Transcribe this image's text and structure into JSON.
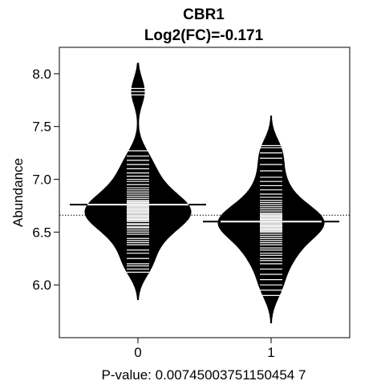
{
  "chart_data": {
    "type": "beanplot",
    "title": "CBR1",
    "subtitle": "Log2(FC)=-0.171",
    "xlabel": "P-value: 0.00745003751150454 7",
    "ylabel": "Abundance",
    "categories": [
      "0",
      "1"
    ],
    "ylim": [
      5.5,
      8.25
    ],
    "y_ticks": [
      6.0,
      6.5,
      7.0,
      7.5,
      8.0
    ],
    "y_tick_labels": [
      "6.0",
      "6.5",
      "7.0",
      "7.5",
      "8.0"
    ],
    "overall_mean": 6.66,
    "groups": [
      {
        "category": "0",
        "mean": 6.76,
        "density_min": 5.86,
        "density_max": 8.1,
        "observations_range": [
          6.1,
          7.86
        ],
        "observation_values": [
          6.12,
          6.15,
          6.18,
          6.2,
          6.25,
          6.3,
          6.33,
          6.38,
          6.4,
          6.42,
          6.44,
          6.48,
          6.5,
          6.52,
          6.54,
          6.55,
          6.57,
          6.58,
          6.6,
          6.61,
          6.62,
          6.63,
          6.64,
          6.65,
          6.66,
          6.67,
          6.68,
          6.69,
          6.7,
          6.71,
          6.72,
          6.73,
          6.74,
          6.75,
          6.76,
          6.77,
          6.78,
          6.79,
          6.8,
          6.82,
          6.84,
          6.86,
          6.88,
          6.9,
          6.92,
          6.95,
          6.98,
          7.0,
          7.03,
          7.06,
          7.1,
          7.14,
          7.18,
          7.22,
          7.27,
          7.8,
          7.83,
          7.86
        ]
      },
      {
        "category": "1",
        "mean": 6.6,
        "density_min": 5.64,
        "density_max": 7.6,
        "observations_range": [
          5.9,
          7.32
        ],
        "observation_values": [
          5.9,
          5.95,
          6.0,
          6.05,
          6.1,
          6.15,
          6.2,
          6.23,
          6.25,
          6.28,
          6.3,
          6.33,
          6.35,
          6.38,
          6.4,
          6.42,
          6.44,
          6.46,
          6.48,
          6.5,
          6.51,
          6.52,
          6.53,
          6.54,
          6.55,
          6.56,
          6.57,
          6.58,
          6.59,
          6.6,
          6.61,
          6.62,
          6.63,
          6.64,
          6.65,
          6.66,
          6.67,
          6.68,
          6.7,
          6.72,
          6.74,
          6.76,
          6.78,
          6.8,
          6.83,
          6.86,
          6.9,
          6.94,
          6.98,
          7.02,
          7.08,
          7.14,
          7.2,
          7.25,
          7.3,
          7.32
        ]
      }
    ]
  }
}
